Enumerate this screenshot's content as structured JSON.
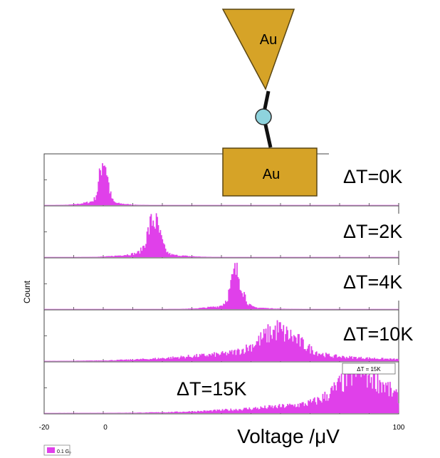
{
  "chart_data": {
    "type": "area",
    "xlabel": "Voltage /μV",
    "ylabel": "Count",
    "xlim": [
      -20,
      100
    ],
    "x_ticks": [
      "-20",
      "0",
      "100"
    ],
    "series": [
      {
        "name": "ΔT=0K",
        "peak": 0,
        "width": 1.3,
        "amp": 0.92,
        "tail": 0.1,
        "label": "ΔT=0K"
      },
      {
        "name": "ΔT=2K",
        "peak": 17,
        "width": 2.0,
        "amp": 0.72,
        "tail": 0.1,
        "label": "ΔT=2K"
      },
      {
        "name": "ΔT=4K",
        "peak": 45,
        "width": 1.9,
        "amp": 0.74,
        "tail": 0.08,
        "label": "ΔT=4K"
      },
      {
        "name": "ΔT=10K",
        "peak": 60,
        "width": 6.5,
        "amp": 0.48,
        "tail": 0.2,
        "label": "ΔT=10K"
      },
      {
        "name": "ΔT=15K",
        "peak": 88,
        "width": 7.5,
        "amp": 0.72,
        "tail": 0.22,
        "label": "ΔT=15K"
      }
    ],
    "inset_label": "ΔT = 15K",
    "legend": "0.1 G₀",
    "series_color": "#e040ea"
  },
  "schematic": {
    "tip_label": "Au",
    "substrate_label": "Au",
    "gold_color": "#d6a327",
    "molecule_color": "#8ed3dd"
  }
}
